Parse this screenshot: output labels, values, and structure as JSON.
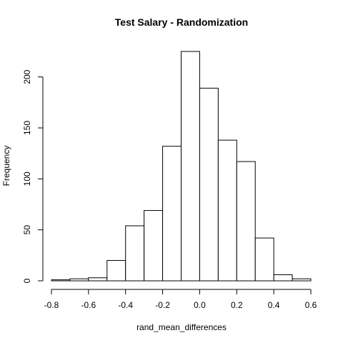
{
  "chart_data": {
    "type": "bar",
    "title": "Test Salary - Randomization",
    "xlabel": "rand_mean_differences",
    "ylabel": "Frequency",
    "bins": [
      {
        "x0": -0.8,
        "x1": -0.7,
        "count": 1
      },
      {
        "x0": -0.7,
        "x1": -0.6,
        "count": 2
      },
      {
        "x0": -0.6,
        "x1": -0.5,
        "count": 3
      },
      {
        "x0": -0.5,
        "x1": -0.4,
        "count": 20
      },
      {
        "x0": -0.4,
        "x1": -0.3,
        "count": 54
      },
      {
        "x0": -0.3,
        "x1": -0.2,
        "count": 69
      },
      {
        "x0": -0.2,
        "x1": -0.1,
        "count": 132
      },
      {
        "x0": -0.1,
        "x1": 0.0,
        "count": 225
      },
      {
        "x0": 0.0,
        "x1": 0.1,
        "count": 189
      },
      {
        "x0": 0.1,
        "x1": 0.2,
        "count": 138
      },
      {
        "x0": 0.2,
        "x1": 0.3,
        "count": 117
      },
      {
        "x0": 0.3,
        "x1": 0.4,
        "count": 42
      },
      {
        "x0": 0.4,
        "x1": 0.5,
        "count": 6
      },
      {
        "x0": 0.5,
        "x1": 0.6,
        "count": 2
      }
    ],
    "xlim": [
      -0.8,
      0.6
    ],
    "ylim": [
      0,
      225
    ],
    "xticks": [
      -0.8,
      -0.6,
      -0.4,
      -0.2,
      0.0,
      0.2,
      0.4,
      0.6
    ],
    "xtick_labels": [
      "-0.8",
      "-0.6",
      "-0.4",
      "-0.2",
      "0.0",
      "0.2",
      "0.4",
      "0.6"
    ],
    "yticks": [
      0,
      50,
      100,
      150,
      200
    ],
    "ytick_labels": [
      "0",
      "50",
      "100",
      "150",
      "200"
    ],
    "grid": false,
    "legend": "none"
  }
}
